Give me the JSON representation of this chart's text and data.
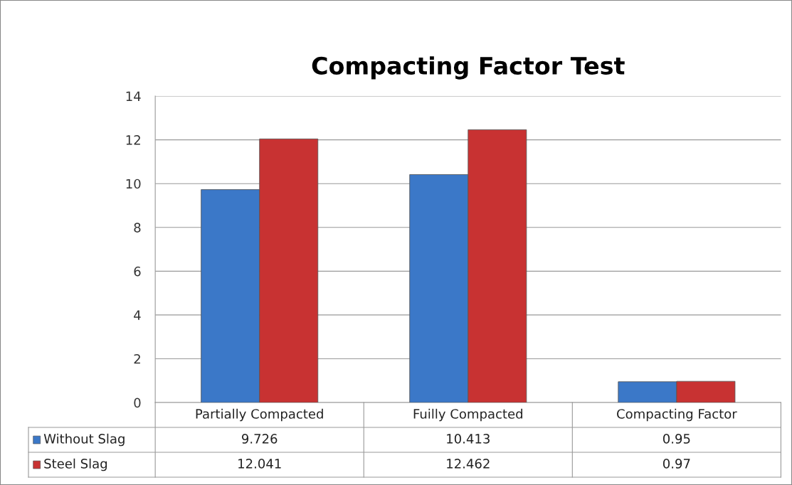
{
  "chart_data": {
    "type": "bar",
    "title": "Compacting Factor Test",
    "categories": [
      "Partially Compacted",
      "Fuilly Compacted",
      "Compacting Factor"
    ],
    "series": [
      {
        "name": "Without Slag",
        "color": "#3b78c8",
        "values": [
          9.726,
          10.413,
          0.95
        ]
      },
      {
        "name": "Steel Slag",
        "color": "#c83232",
        "values": [
          12.041,
          12.462,
          0.97
        ]
      }
    ],
    "ylim": [
      0,
      14
    ],
    "yticks": [
      0,
      2,
      4,
      6,
      8,
      10,
      12,
      14
    ],
    "grid": "y",
    "legend": "bottom left",
    "data_labels": true
  }
}
